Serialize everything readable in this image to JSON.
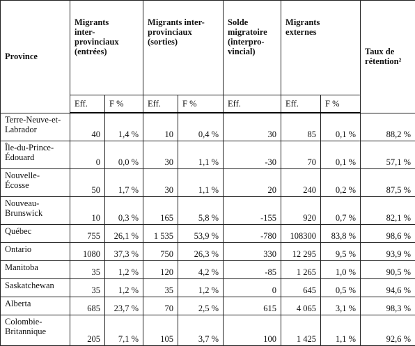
{
  "table": {
    "header": {
      "groups": [
        "Province",
        "Migrants\ninter-\nprovinciaux\n(entrées)",
        "Migrants inter-\nprovinciaux\n(sorties)",
        "Solde\nmigratoire\n(interpro-\nvincial)",
        "Migrants\nexternes",
        "Taux de\nrétention²"
      ],
      "subs": [
        "Eff.",
        "F %",
        "Eff.",
        "F %",
        "Eff.",
        "Eff.",
        "F %"
      ]
    },
    "rows": [
      [
        "Terre-Neuve-et-\nLabrador",
        "40",
        "1,4 %",
        "10",
        "0,4 %",
        "30",
        "85",
        "0,1 %",
        "88,2 %"
      ],
      [
        "Île-du-Prince-\nÉdouard",
        "0",
        "0,0 %",
        "30",
        "1,1 %",
        "-30",
        "70",
        "0,1 %",
        "57,1 %"
      ],
      [
        "Nouvelle-\nÉcosse",
        "50",
        "1,7 %",
        "30",
        "1,1 %",
        "20",
        "240",
        "0,2 %",
        "87,5 %"
      ],
      [
        "Nouveau-\nBrunswick",
        "10",
        "0,3 %",
        "165",
        "5,8 %",
        "-155",
        "920",
        "0,7 %",
        "82,1 %"
      ],
      [
        "Québec",
        "755",
        "26,1 %",
        "1 535",
        "53,9 %",
        "-780",
        "108300",
        "83,8 %",
        "98,6 %"
      ],
      [
        "Ontario",
        "1080",
        "37,3 %",
        "750",
        "26,3 %",
        "330",
        "12 295",
        "9,5 %",
        "93,9 %"
      ],
      [
        "Manitoba",
        "35",
        "1,2 %",
        "120",
        "4,2 %",
        "-85",
        "1 265",
        "1,0 %",
        "90,5 %"
      ],
      [
        "Saskatchewan",
        "35",
        "1,2 %",
        "35",
        "1,2 %",
        "0",
        "645",
        "0,5 %",
        "94,6 %"
      ],
      [
        "Alberta",
        "685",
        "23,7 %",
        "70",
        "2,5 %",
        "615",
        "4 065",
        "3,1 %",
        "98,3 %"
      ],
      [
        "Colombie-\nBritannique",
        "205",
        "7,1 %",
        "105",
        "3,7 %",
        "100",
        "1 425",
        "1,1 %",
        "92,6 %"
      ]
    ]
  }
}
